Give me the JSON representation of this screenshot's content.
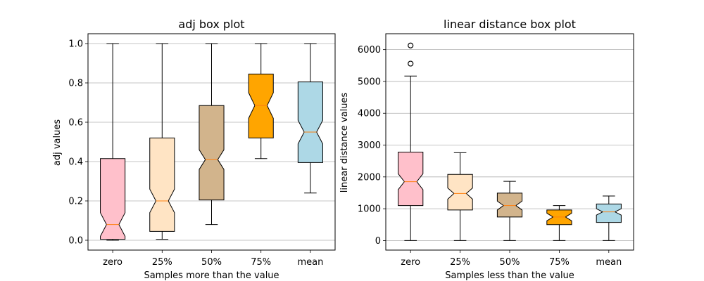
{
  "chart_data": [
    {
      "type": "boxplot",
      "notched": true,
      "title": "adj box plot",
      "xlabel": "Samples more than the value",
      "ylabel": "adj values",
      "categories": [
        "zero",
        "25%",
        "50%",
        "75%",
        "mean"
      ],
      "ylim": [
        -0.05,
        1.05
      ],
      "yticks": [
        0.0,
        0.2,
        0.4,
        0.6,
        0.8,
        1.0
      ],
      "ytick_labels": [
        "0.0",
        "0.2",
        "0.4",
        "0.6",
        "0.8",
        "1.0"
      ],
      "grid": "y",
      "boxes": [
        {
          "category": "zero",
          "whislo": 0.0,
          "q1": 0.005,
          "med": 0.08,
          "q3": 0.415,
          "whishi": 1.0,
          "cilo": 0.02,
          "cihi": 0.14,
          "color": "#ffc0cb",
          "fliers": []
        },
        {
          "category": "25%",
          "whislo": 0.005,
          "q1": 0.045,
          "med": 0.2,
          "q3": 0.52,
          "whishi": 1.0,
          "cilo": 0.14,
          "cihi": 0.26,
          "color": "#ffe4c4",
          "fliers": []
        },
        {
          "category": "50%",
          "whislo": 0.08,
          "q1": 0.205,
          "med": 0.41,
          "q3": 0.685,
          "whishi": 1.0,
          "cilo": 0.36,
          "cihi": 0.46,
          "color": "#d2b48c",
          "fliers": []
        },
        {
          "category": "75%",
          "whislo": 0.415,
          "q1": 0.52,
          "med": 0.685,
          "q3": 0.845,
          "whishi": 1.0,
          "cilo": 0.62,
          "cihi": 0.75,
          "color": "#ffa500",
          "fliers": []
        },
        {
          "category": "mean",
          "whislo": 0.24,
          "q1": 0.395,
          "med": 0.55,
          "q3": 0.805,
          "whishi": 1.0,
          "cilo": 0.49,
          "cihi": 0.61,
          "color": "#add8e6",
          "fliers": []
        }
      ]
    },
    {
      "type": "boxplot",
      "notched": true,
      "title": "linear distance box plot",
      "xlabel": "Samples less than the value",
      "ylabel": "linear distance values",
      "categories": [
        "zero",
        "25%",
        "50%",
        "75%",
        "mean"
      ],
      "ylim": [
        -300,
        6500
      ],
      "yticks": [
        0,
        1000,
        2000,
        3000,
        4000,
        5000,
        6000
      ],
      "ytick_labels": [
        "0",
        "1000",
        "2000",
        "3000",
        "4000",
        "5000",
        "6000"
      ],
      "grid": "y",
      "boxes": [
        {
          "category": "zero",
          "whislo": 0,
          "q1": 1100,
          "med": 1850,
          "q3": 2780,
          "whishi": 5170,
          "cilo": 1600,
          "cihi": 2100,
          "color": "#ffc0cb",
          "fliers": [
            5560,
            6130
          ]
        },
        {
          "category": "25%",
          "whislo": 0,
          "q1": 960,
          "med": 1480,
          "q3": 2080,
          "whishi": 2760,
          "cilo": 1300,
          "cihi": 1650,
          "color": "#ffe4c4",
          "fliers": []
        },
        {
          "category": "50%",
          "whislo": 0,
          "q1": 740,
          "med": 1100,
          "q3": 1490,
          "whishi": 1860,
          "cilo": 960,
          "cihi": 1240,
          "color": "#d2b48c",
          "fliers": []
        },
        {
          "category": "75%",
          "whislo": 0,
          "q1": 500,
          "med": 740,
          "q3": 960,
          "whishi": 1100,
          "cilo": 620,
          "cihi": 860,
          "color": "#ffa500",
          "fliers": []
        },
        {
          "category": "mean",
          "whislo": 0,
          "q1": 570,
          "med": 900,
          "q3": 1150,
          "whishi": 1400,
          "cilo": 800,
          "cihi": 1000,
          "color": "#add8e6",
          "fliers": []
        }
      ]
    }
  ],
  "colors": {
    "median_line": "#ff7f0e",
    "grid": "#b0b0b0",
    "box_edge": "#000000"
  }
}
